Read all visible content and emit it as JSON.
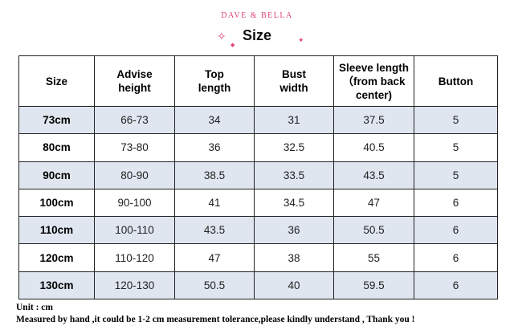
{
  "header": {
    "brand": "DAVE & BELLA",
    "title": "Size",
    "sparkle_color": "#e0457a"
  },
  "table": {
    "columns": [
      "Size",
      "Advise height",
      "Top length",
      "Bust width",
      "Sleeve length（from back center)",
      "Button"
    ],
    "rows": [
      [
        "73cm",
        "66-73",
        "34",
        "31",
        "37.5",
        "5"
      ],
      [
        "80cm",
        "73-80",
        "36",
        "32.5",
        "40.5",
        "5"
      ],
      [
        "90cm",
        "80-90",
        "38.5",
        "33.5",
        "43.5",
        "5"
      ],
      [
        "100cm",
        "90-100",
        "41",
        "34.5",
        "47",
        "6"
      ],
      [
        "110cm",
        "100-110",
        "43.5",
        "36",
        "50.5",
        "6"
      ],
      [
        "120cm",
        "110-120",
        "47",
        "38",
        "55",
        "6"
      ],
      [
        "130cm",
        "120-130",
        "50.5",
        "40",
        "59.5",
        "6"
      ]
    ],
    "shade_color": "#dfe6f0"
  },
  "footer": {
    "unit": "Unit : cm",
    "note": "Measured by hand ,it could be 1-2 cm measurement tolerance,please kindly understand , Thank you !"
  }
}
